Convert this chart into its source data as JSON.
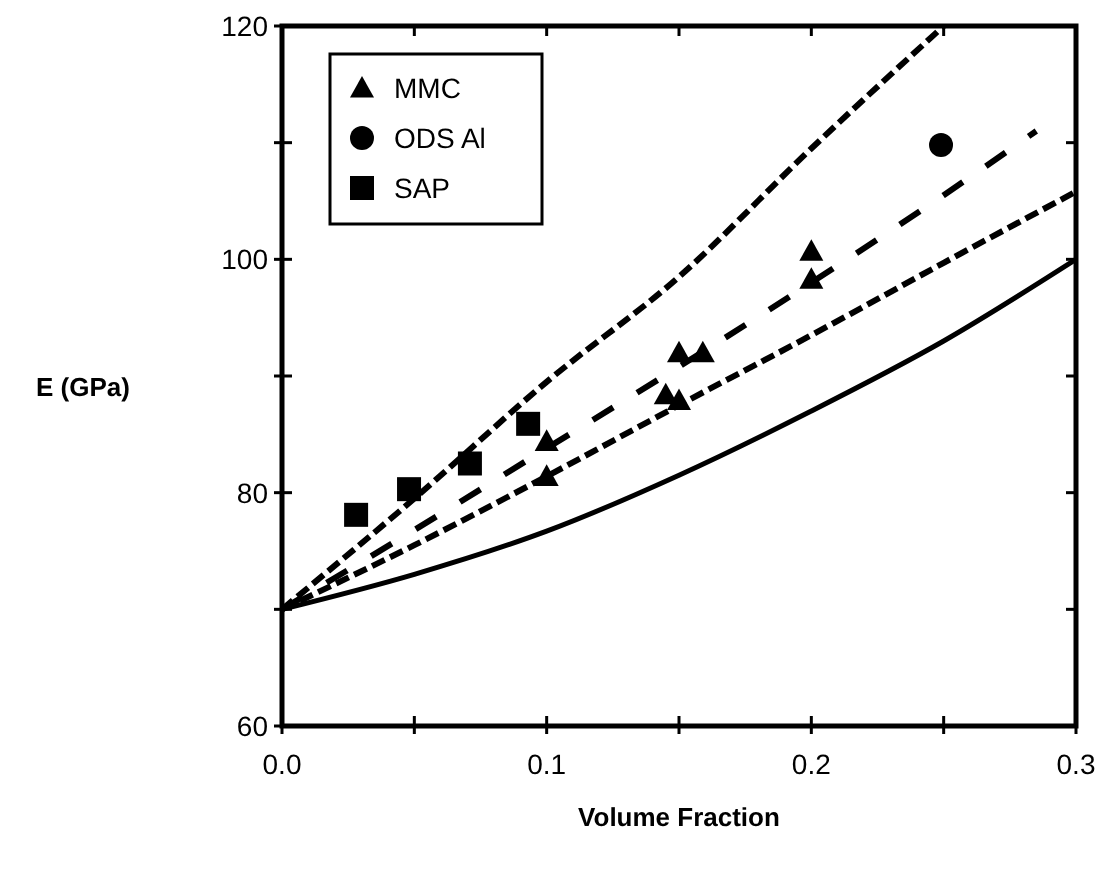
{
  "chart_data": {
    "type": "scatter",
    "xlabel": "Volume Fraction",
    "ylabel": "E (GPa)",
    "xlim": [
      0,
      0.3
    ],
    "ylim": [
      60,
      120
    ],
    "xticks": [
      {
        "value": 0,
        "label": "0.0"
      },
      {
        "value": 0.05,
        "label": null
      },
      0.1,
      {
        "value": 0.15,
        "label": null
      },
      0.2,
      {
        "value": 0.25,
        "label": null
      },
      0.3
    ],
    "yticks": [
      60,
      {
        "value": 70,
        "label": null
      },
      80,
      {
        "value": 90,
        "label": null
      },
      100,
      {
        "value": 110,
        "label": null
      },
      120
    ],
    "grid": false,
    "legend": "top left",
    "series": [
      {
        "name": "MMC",
        "marker": "triangle",
        "color": "#000000",
        "x": [
          0.1,
          0.1,
          0.15,
          0.159,
          0.145,
          0.15,
          0.2,
          0.2
        ],
        "values": [
          84.4,
          81.4,
          92,
          92,
          88.4,
          87.9,
          100.7,
          98.3
        ]
      },
      {
        "name": "ODS Al",
        "marker": "circle",
        "color": "#000000",
        "x": [
          0.249
        ],
        "values": [
          109.8
        ]
      },
      {
        "name": "SAP",
        "marker": "square",
        "color": "#000000",
        "x": [
          0.028,
          0.048,
          0.071,
          0.093
        ],
        "values": [
          78.1,
          80.3,
          82.5,
          85.9
        ]
      },
      {
        "type": "line",
        "line_style": "dotted",
        "color": "#000000",
        "x": [
          0,
          0.05,
          0.1,
          0.15,
          0.2,
          0.25
        ],
        "values": [
          70,
          79.5,
          89.5,
          98.5,
          109.5,
          120
        ]
      },
      {
        "type": "line",
        "line_style": "dashed",
        "color": "#000000",
        "x": [
          0,
          0.05,
          0.1,
          0.15,
          0.2,
          0.25,
          0.285
        ],
        "values": [
          70,
          76.8,
          83.8,
          90.8,
          98,
          105.5,
          111
        ]
      },
      {
        "type": "line",
        "line_style": "dotted",
        "color": "#000000",
        "x": [
          0,
          0.05,
          0.1,
          0.15,
          0.2,
          0.25,
          0.3
        ],
        "values": [
          70,
          75.5,
          81.4,
          87.5,
          93.5,
          99.7,
          105.8
        ]
      },
      {
        "type": "line",
        "line_style": "solid",
        "color": "#000000",
        "x": [
          0,
          0.05,
          0.1,
          0.15,
          0.2,
          0.25,
          0.3
        ],
        "values": [
          70,
          73,
          76.7,
          81.5,
          87,
          93,
          100
        ]
      }
    ]
  }
}
